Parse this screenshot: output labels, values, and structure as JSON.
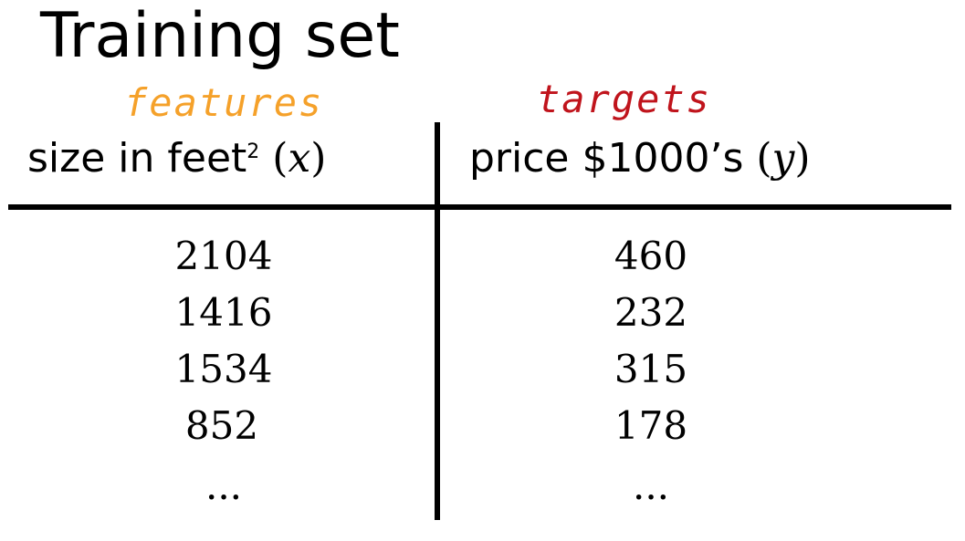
{
  "title": "Training set",
  "annotations": {
    "features": "features",
    "targets": "targets"
  },
  "columns": {
    "x": {
      "label": "size in feet",
      "superscript": "2",
      "open_paren": "(",
      "variable": "x",
      "close_paren": ")"
    },
    "y": {
      "label": "price $1000’s",
      "open_paren": "(",
      "variable": "y",
      "close_paren": ")"
    }
  },
  "rows": [
    {
      "x": "2104",
      "y": "460"
    },
    {
      "x": "1416",
      "y": "232"
    },
    {
      "x": "1534",
      "y": "315"
    },
    {
      "x": "852",
      "y": "178"
    },
    {
      "x": "...",
      "y": "..."
    }
  ],
  "colors": {
    "features": "#f5a12a",
    "targets": "#c0141c"
  }
}
